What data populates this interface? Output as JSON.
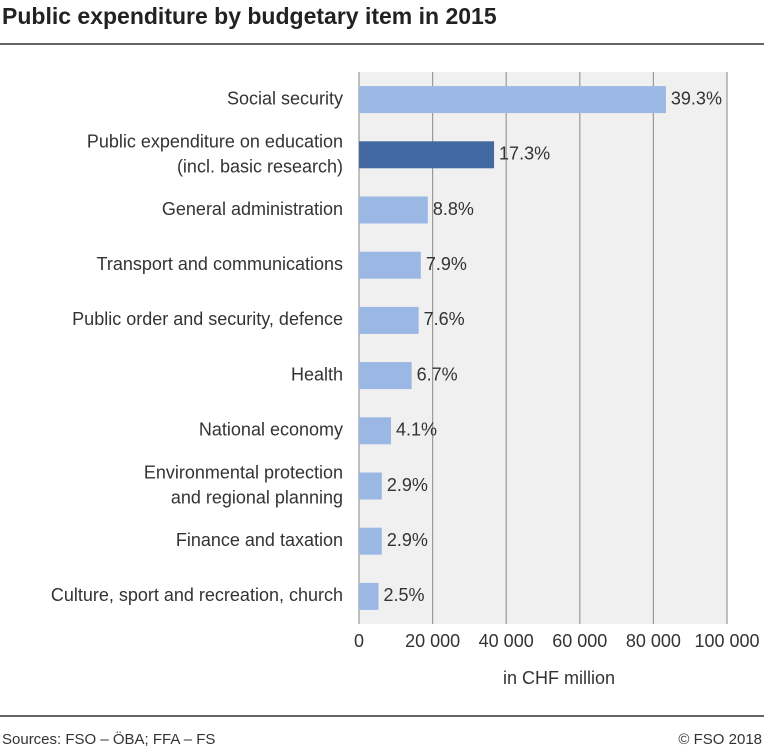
{
  "chart_data": {
    "type": "hbar",
    "title": "Public expenditure by budgetary item in 2015",
    "categories": [
      "Social security",
      "Public expenditure on education\n(incl. basic research)",
      "General administration",
      "Transport and communications",
      "Public order and security, defence",
      "Health",
      "National economy",
      "Environmental protection\nand regional planning",
      "Finance and taxation",
      "Culture, sport and recreation, church"
    ],
    "values": [
      83400,
      36700,
      18700,
      16800,
      16200,
      14300,
      8700,
      6200,
      6200,
      5300
    ],
    "share_labels": [
      "39.3%",
      "17.3%",
      "8.8%",
      "7.9%",
      "7.6%",
      "6.7%",
      "4.1%",
      "2.9%",
      "2.9%",
      "2.5%"
    ],
    "colors": [
      "#9ab8e3",
      "#4369a3",
      "#9ab8e3",
      "#9ab8e3",
      "#9ab8e3",
      "#9ab8e3",
      "#9ab8e3",
      "#9ab8e3",
      "#9ab8e3",
      "#9ab8e3"
    ],
    "xlim": [
      0,
      100000
    ],
    "xticks": [
      0,
      {
        "value": 20000,
        "label": "20 000"
      },
      {
        "value": 40000,
        "label": "40 000"
      },
      {
        "value": 60000,
        "label": "60 000"
      },
      {
        "value": 80000,
        "label": "80 000"
      },
      {
        "value": 100000,
        "label": "100 000"
      }
    ],
    "xlabel": "in CHF million",
    "grid": true,
    "source": "Sources: FSO – ÖBA; FFA – FS",
    "copyright": "© FSO 2018"
  }
}
